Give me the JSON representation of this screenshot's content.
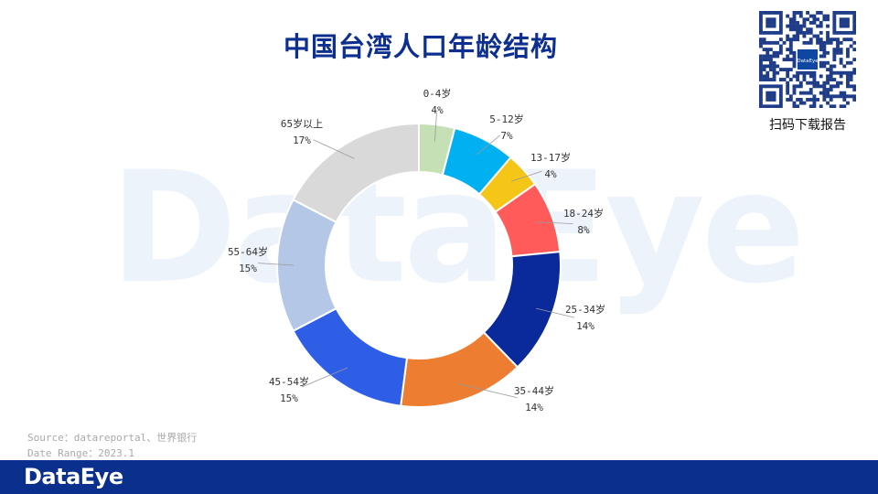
{
  "title": "中国台湾人口年龄结构",
  "watermark": "DataEye",
  "qr": {
    "center_label": "DataEye",
    "caption": "扫码下载报告"
  },
  "source": {
    "line1": "Source：datareportal、世界银行",
    "line2": "Date Range：2023.1"
  },
  "footer": {
    "logo": "DataEye"
  },
  "colors": {
    "title": "#0d2f8f",
    "footer_bar": "#0b2f8c"
  },
  "chart_data": {
    "type": "pie",
    "variant": "donut",
    "categories": [
      "0-4岁",
      "5-12岁",
      "13-17岁",
      "18-24岁",
      "25-34岁",
      "35-44岁",
      "45-54岁",
      "55-64岁",
      "65岁以上"
    ],
    "values": [
      4,
      7,
      4,
      8,
      14,
      14,
      15,
      15,
      17
    ],
    "labels": [
      "4%",
      "7%",
      "4%",
      "8%",
      "14%",
      "14%",
      "15%",
      "15%",
      "17%"
    ],
    "colors": [
      "#c5e0b4",
      "#00b0f0",
      "#f5c518",
      "#ff5b5b",
      "#0a2a9c",
      "#ed7d31",
      "#2e5ee6",
      "#b4c7e7",
      "#d9d9d9"
    ],
    "legend": "none"
  }
}
